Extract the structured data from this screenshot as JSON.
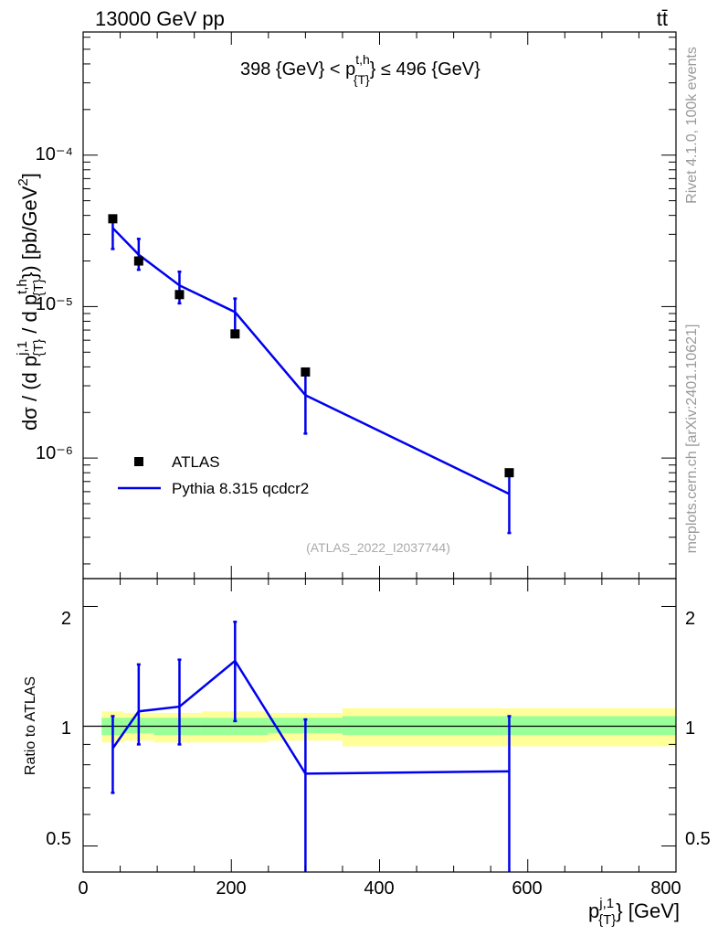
{
  "header": {
    "left": "13000 GeV pp",
    "right": "tt̄"
  },
  "side_labels": {
    "rivet": "Rivet 4.1.0,  100k events",
    "mcplots": "mcplots.cern.ch [arXiv:2401.10621]"
  },
  "chart_data": [
    {
      "type": "scatter",
      "panel": "main",
      "title": "398 {GeV} < p_{T}^{t,h} ≤ 496 {GeV}",
      "ylabel": "dσ / (d p_{T}^{j,1} / d p_{T}^{t,h}) [pb/GeV²]",
      "yscale": "log",
      "ylim": [
        1.6e-07,
        0.00065
      ],
      "xlim": [
        0,
        800
      ],
      "ytick_labels": [
        "10⁻⁶",
        "10⁻⁵",
        "10⁻⁴"
      ],
      "watermark": "(ATLAS_2022_I2037744)",
      "legend": {
        "position": "bottom-left",
        "entries": [
          "ATLAS",
          "Pythia 8.315 qcdcr2"
        ]
      },
      "series": [
        {
          "name": "ATLAS",
          "style": "square-marker",
          "color": "#000000",
          "x": [
            40,
            75,
            130,
            205,
            300,
            575
          ],
          "y": [
            3.8e-05,
            2e-05,
            1.2e-05,
            6.6e-06,
            3.7e-06,
            8e-07
          ]
        },
        {
          "name": "Pythia 8.315 qcdcr2",
          "style": "line",
          "color": "#0000ee",
          "x": [
            40,
            75,
            130,
            205,
            300,
            575
          ],
          "y": [
            3.3e-05,
            2.2e-05,
            1.38e-05,
            9.2e-06,
            2.6e-06,
            5.8e-07
          ],
          "y_low": [
            2.4e-05,
            1.75e-05,
            1.05e-05,
            6.7e-06,
            1.45e-06,
            3.2e-07
          ],
          "y_high": [
            3.9e-05,
            2.8e-05,
            1.7e-05,
            1.13e-05,
            3.75e-06,
            8e-07
          ]
        }
      ]
    },
    {
      "type": "line",
      "panel": "ratio",
      "ylabel": "Ratio to ATLAS",
      "xlabel": "p_{T}^{j,1} [GeV]",
      "yscale": "log",
      "ylim": [
        0.43,
        2.35
      ],
      "xlim": [
        0,
        800
      ],
      "xtick_labels": [
        "0",
        "200",
        "400",
        "600",
        "800"
      ],
      "ytick_labels": [
        "0.5",
        "1",
        "2"
      ],
      "reference": 1,
      "bands": [
        {
          "x_from": 25,
          "x_to": 55,
          "stat_low": 0.95,
          "stat_high": 1.05,
          "total_low": 0.91,
          "total_high": 1.09
        },
        {
          "x_from": 55,
          "x_to": 95,
          "stat_low": 0.96,
          "stat_high": 1.05,
          "total_low": 0.92,
          "total_high": 1.08
        },
        {
          "x_from": 95,
          "x_to": 160,
          "stat_low": 0.95,
          "stat_high": 1.05,
          "total_low": 0.91,
          "total_high": 1.08
        },
        {
          "x_from": 160,
          "x_to": 250,
          "stat_low": 0.95,
          "stat_high": 1.05,
          "total_low": 0.91,
          "total_high": 1.09
        },
        {
          "x_from": 250,
          "x_to": 350,
          "stat_low": 0.96,
          "stat_high": 1.05,
          "total_low": 0.92,
          "total_high": 1.08
        },
        {
          "x_from": 350,
          "x_to": 800,
          "stat_low": 0.95,
          "stat_high": 1.06,
          "total_low": 0.89,
          "total_high": 1.11
        }
      ],
      "series": [
        {
          "name": "Pythia 8.315 qcdcr2",
          "color": "#0000ee",
          "x": [
            40,
            75,
            130,
            205,
            300,
            575
          ],
          "y": [
            0.88,
            1.09,
            1.12,
            1.46,
            0.76,
            0.77
          ],
          "y_low": [
            0.68,
            0.9,
            0.9,
            1.03,
            0.4,
            0.4
          ],
          "y_high": [
            1.06,
            1.43,
            1.47,
            1.83,
            1.04,
            1.06
          ]
        }
      ]
    }
  ]
}
